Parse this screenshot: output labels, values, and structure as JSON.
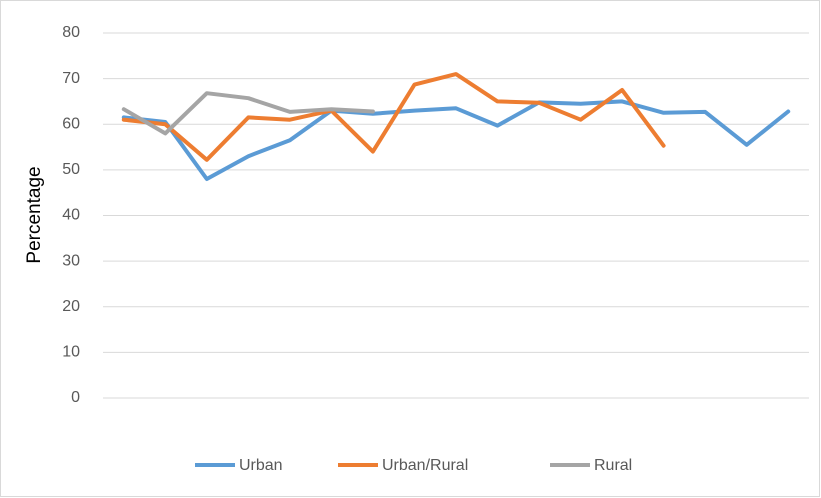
{
  "chart_data": {
    "type": "line",
    "y_label": "Percentage",
    "categories": [
      null,
      null,
      null,
      null,
      null,
      null,
      null,
      null,
      null,
      null,
      null,
      null,
      null,
      null,
      null,
      null,
      null
    ],
    "series": [
      {
        "name": "Urban",
        "color": "#5b9bd5",
        "values": [
          61.5,
          60.5,
          48,
          53,
          56.5,
          63,
          62.3,
          63,
          63.5,
          59.7,
          64.8,
          64.5,
          65,
          62.5,
          62.7,
          55.5,
          62.8
        ]
      },
      {
        "name": "Urban/Rural",
        "color": "#ed7d31",
        "values": [
          61,
          60,
          52.2,
          61.5,
          61,
          63,
          54,
          68.7,
          71,
          65,
          64.7,
          61,
          67.5,
          55.3,
          null,
          null,
          null
        ]
      },
      {
        "name": "Rural",
        "color": "#a5a5a5",
        "values": [
          63.3,
          58,
          66.8,
          65.7,
          62.7,
          63.3,
          62.8,
          null,
          null,
          null,
          null,
          null,
          null,
          null,
          null,
          null,
          null
        ]
      }
    ],
    "ylim": [
      0,
      80
    ],
    "yticks": [
      0,
      10,
      20,
      30,
      40,
      50,
      60,
      70,
      80
    ],
    "grid": true,
    "legend": "bottom"
  }
}
